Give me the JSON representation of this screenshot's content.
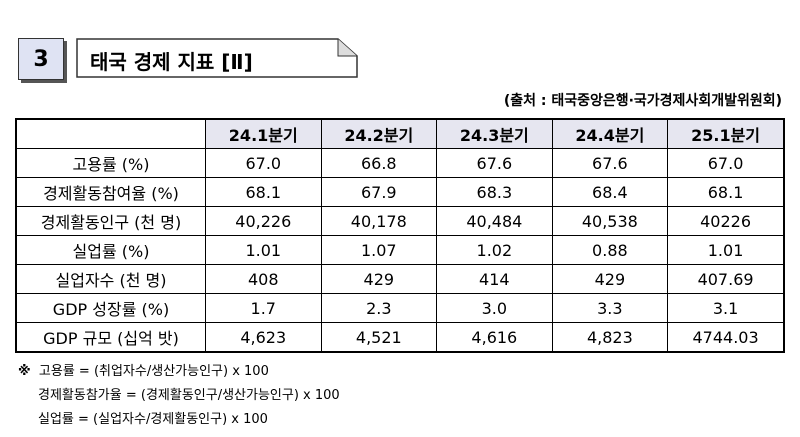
{
  "header": {
    "number": "3",
    "title": "태국 경제 지표 [Ⅱ]"
  },
  "source": "(출처 : 태국중앙은행·국가경제사회개발위원회)",
  "table": {
    "columns": [
      "24.1분기",
      "24.2분기",
      "24.3분기",
      "24.4분기",
      "25.1분기"
    ],
    "rows": [
      [
        "고용률 (%)",
        "67.0",
        "66.8",
        "67.6",
        "67.6",
        "67.0"
      ],
      [
        "경제활동참여율 (%)",
        "68.1",
        "67.9",
        "68.3",
        "68.4",
        "68.1"
      ],
      [
        "경제활동인구 (천 명)",
        "40,226",
        "40,178",
        "40,484",
        "40,538",
        "40226"
      ],
      [
        "실업률 (%)",
        "1.01",
        "1.07",
        "1.02",
        "0.88",
        "1.01"
      ],
      [
        "실업자수 (천 명)",
        "408",
        "429",
        "414",
        "429",
        "407.69"
      ],
      [
        "GDP 성장률 (%)",
        "1.7",
        "2.3",
        "3.0",
        "3.3",
        "3.1"
      ],
      [
        "GDP 규모 (십억 밧)",
        "4,623",
        "4,521",
        "4,616",
        "4,823",
        "4744.03"
      ]
    ]
  },
  "footnotes": {
    "mark": "※",
    "lines": [
      "고용률 = (취업자수/생산가능인구) x 100",
      "경제활동참가율 = (경제활동인구/생산가능인구) x 100",
      "실업률 = (실업자수/경제활동인구) x 100"
    ]
  }
}
